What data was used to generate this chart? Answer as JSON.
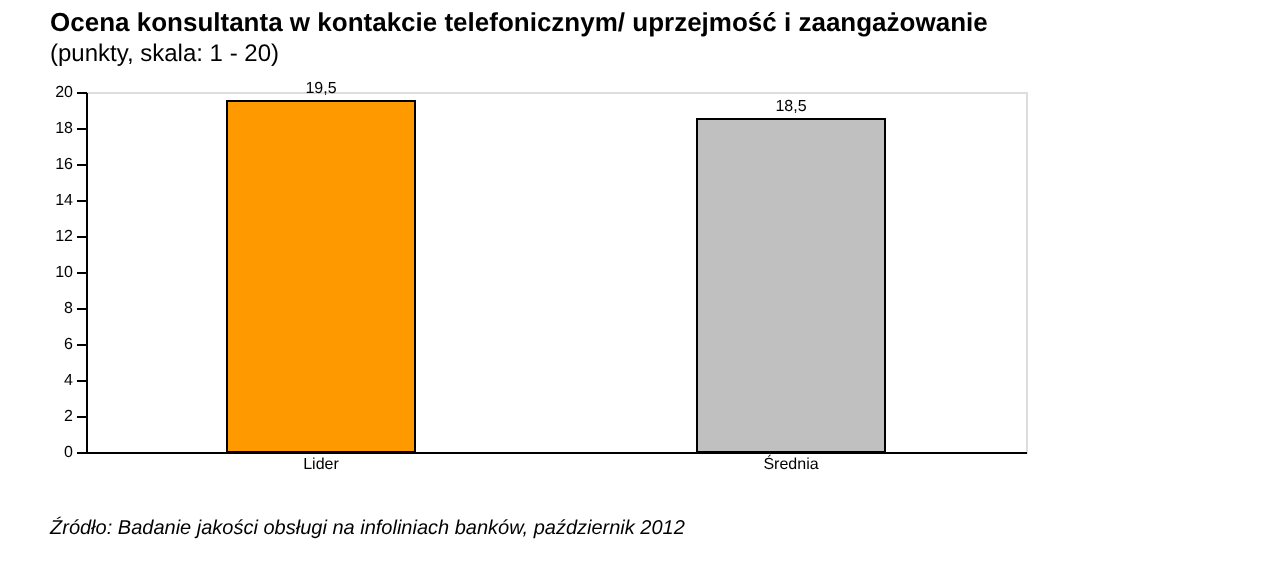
{
  "chart_data": {
    "type": "bar",
    "title": "Ocena konsultanta w kontakcie telefonicznym/ uprzejmość i zaangażowanie",
    "subtitle": "(punkty, skala: 1 - 20)",
    "categories": [
      "Lider",
      "Średnia"
    ],
    "values": [
      19.5,
      18.5
    ],
    "colors": [
      "#ff9900",
      "#c0c0c0"
    ],
    "value_labels": [
      "19,5",
      "18,5"
    ],
    "ylim": [
      0,
      20
    ],
    "yticks": [
      0,
      2,
      4,
      6,
      8,
      10,
      12,
      14,
      16,
      18,
      20
    ],
    "grid": false,
    "annotations": [
      "Źródło: Badanie jakości obsługi na infoliniach banków, październik 2012"
    ]
  }
}
